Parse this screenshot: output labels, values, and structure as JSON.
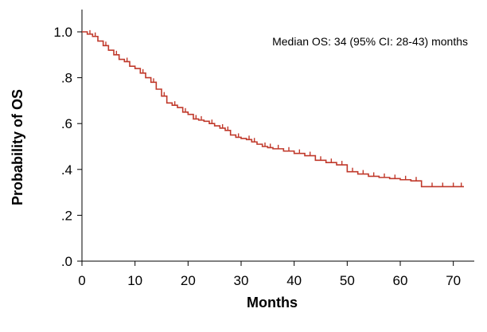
{
  "chart_data": {
    "type": "line",
    "xlabel": "Months",
    "ylabel": "Probability of OS",
    "xlim": [
      0,
      72
    ],
    "ylim": [
      0,
      1
    ],
    "x_ticks": [
      0,
      10,
      20,
      30,
      40,
      50,
      60,
      70
    ],
    "x_tick_labels": [
      "0",
      "10",
      "20",
      "30",
      "40",
      "50",
      "60",
      "70"
    ],
    "y_ticks": [
      0,
      0.2,
      0.4,
      0.6,
      0.8,
      1.0
    ],
    "y_tick_labels": [
      ".0",
      ".2",
      ".4",
      ".6",
      ".8",
      "1.0"
    ],
    "annotation": "Median OS: 34 (95% CI: 28-43)  months",
    "grid": false,
    "series": [
      {
        "color": "#c0392b",
        "step": true,
        "x": [
          0,
          1,
          2,
          3,
          4,
          5,
          6,
          7,
          8,
          9,
          10,
          11,
          12,
          13,
          14,
          15,
          16,
          17,
          18,
          19,
          20,
          21,
          22,
          23,
          24,
          25,
          26,
          27,
          28,
          29,
          30,
          31,
          32,
          33,
          34,
          35,
          36,
          38,
          40,
          42,
          44,
          46,
          48,
          50,
          52,
          54,
          56,
          58,
          60,
          62,
          64,
          72
        ],
        "y": [
          1.0,
          0.99,
          0.98,
          0.96,
          0.94,
          0.92,
          0.9,
          0.88,
          0.87,
          0.85,
          0.84,
          0.82,
          0.8,
          0.78,
          0.75,
          0.72,
          0.69,
          0.68,
          0.67,
          0.65,
          0.64,
          0.62,
          0.615,
          0.61,
          0.6,
          0.59,
          0.58,
          0.57,
          0.55,
          0.54,
          0.535,
          0.53,
          0.52,
          0.51,
          0.5,
          0.495,
          0.49,
          0.48,
          0.47,
          0.46,
          0.44,
          0.43,
          0.42,
          0.39,
          0.38,
          0.37,
          0.365,
          0.36,
          0.355,
          0.35,
          0.325,
          0.325
        ]
      }
    ],
    "censor_x": [
      1.5,
      2.5,
      4.5,
      6.5,
      8.5,
      11.5,
      13.5,
      15.5,
      17.5,
      19.5,
      21.5,
      22.5,
      24.5,
      26.5,
      27.5,
      29.5,
      31.5,
      32.5,
      34.5,
      35.5,
      37,
      39,
      41,
      43,
      45,
      47,
      49,
      51,
      53,
      55,
      57,
      59,
      61,
      63,
      66,
      68,
      70,
      71.5
    ]
  }
}
